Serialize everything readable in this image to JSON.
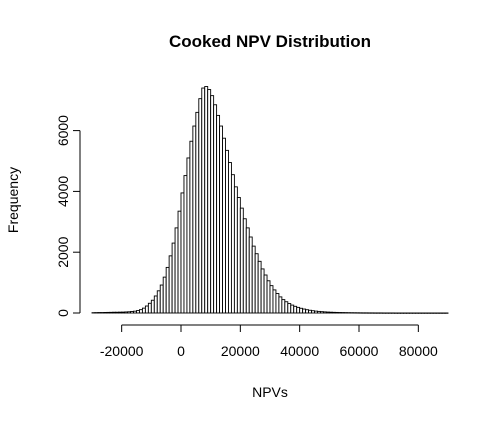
{
  "chart_data": {
    "type": "bar",
    "title": "Cooked NPV Distribution",
    "xlabel": "NPVs",
    "ylabel": "Frequency",
    "bin_width": 1000,
    "bins_start": -30000,
    "counts": [
      10,
      12,
      15,
      15,
      18,
      20,
      22,
      25,
      25,
      28,
      30,
      35,
      40,
      50,
      60,
      80,
      110,
      160,
      230,
      320,
      420,
      560,
      730,
      920,
      1180,
      1500,
      1880,
      2300,
      2800,
      3350,
      3950,
      4520,
      5100,
      5650,
      6150,
      6600,
      7050,
      7400,
      7450,
      7350,
      7150,
      6850,
      6500,
      6150,
      5750,
      5350,
      4950,
      4550,
      4150,
      3800,
      3450,
      3100,
      2800,
      2500,
      2200,
      1950,
      1700,
      1450,
      1250,
      1060,
      900,
      760,
      640,
      530,
      440,
      370,
      310,
      260,
      220,
      185,
      155,
      130,
      108,
      90,
      75,
      62,
      52,
      44,
      37,
      31,
      26,
      22,
      19,
      16,
      14,
      12,
      10,
      9,
      8,
      7,
      6,
      5,
      5,
      4,
      4,
      3,
      3,
      3,
      2,
      2,
      2,
      2,
      1,
      1,
      1,
      1,
      1,
      1,
      1,
      1,
      1,
      1,
      1,
      1,
      1,
      1,
      1,
      1,
      1,
      1
    ],
    "x_ticks": [
      -20000,
      0,
      20000,
      40000,
      60000,
      80000
    ],
    "y_ticks": [
      0,
      2000,
      4000,
      6000
    ],
    "xlim": [
      -30000,
      90000
    ],
    "ylim": [
      0,
      7500
    ],
    "bar_fill": "#ffffff",
    "bar_stroke": "#000000",
    "grid": false
  }
}
